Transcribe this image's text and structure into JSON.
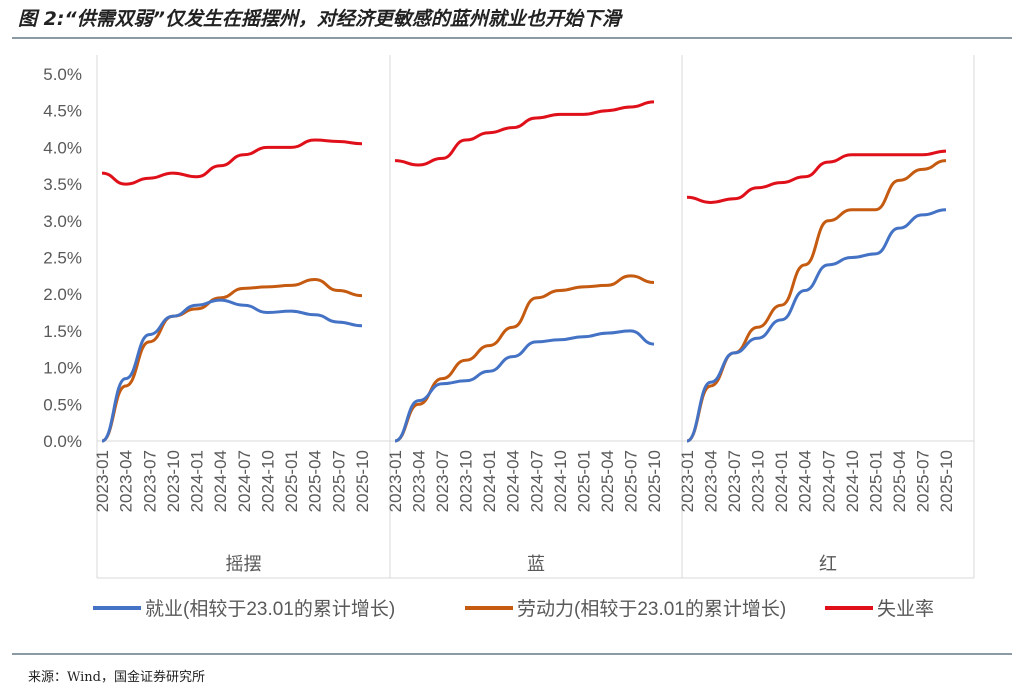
{
  "title": "图 2:“供需双弱”仅发生在摇摆州，对经济更敏感的蓝州就业也开始下滑",
  "source": "来源：Wind，国金证券研究所",
  "chart_data": {
    "type": "line",
    "ylim": [
      0,
      5
    ],
    "yticks": [
      "0.0%",
      "0.5%",
      "1.0%",
      "1.5%",
      "2.0%",
      "2.5%",
      "3.0%",
      "3.5%",
      "4.0%",
      "4.5%",
      "5.0%"
    ],
    "x": [
      "2023-01",
      "2023-04",
      "2023-07",
      "2023-10",
      "2024-01",
      "2024-04",
      "2024-07",
      "2024-10",
      "2025-01",
      "2025-04",
      "2025-07",
      "2025-10"
    ],
    "colors": {
      "employment": "#4472c4",
      "labor": "#c55a11",
      "unemployment": "#e0101a"
    },
    "legend": [
      "就业(相较于23.01的累计增长)",
      "劳动力(相较于23.01的累计增长)",
      "失业率"
    ],
    "legend_placement": "bottom",
    "panels": [
      {
        "name": "摇摆",
        "employment": [
          0,
          0.85,
          1.45,
          1.7,
          1.85,
          1.92,
          1.85,
          1.75,
          1.77,
          1.72,
          1.62,
          1.57
        ],
        "labor": [
          0,
          0.75,
          1.35,
          1.7,
          1.8,
          1.95,
          2.08,
          2.1,
          2.12,
          2.2,
          2.05,
          1.98
        ],
        "unemployment": [
          3.65,
          3.5,
          3.58,
          3.65,
          3.6,
          3.75,
          3.9,
          4.0,
          4.0,
          4.1,
          4.08,
          4.05
        ]
      },
      {
        "name": "蓝",
        "employment": [
          0,
          0.55,
          0.78,
          0.82,
          0.95,
          1.15,
          1.35,
          1.38,
          1.42,
          1.47,
          1.5,
          1.32
        ],
        "labor": [
          0,
          0.5,
          0.85,
          1.1,
          1.3,
          1.55,
          1.95,
          2.05,
          2.1,
          2.12,
          2.25,
          2.16
        ],
        "unemployment": [
          3.82,
          3.76,
          3.85,
          4.1,
          4.2,
          4.27,
          4.4,
          4.45,
          4.45,
          4.5,
          4.55,
          4.62
        ]
      },
      {
        "name": "红",
        "employment": [
          0,
          0.8,
          1.2,
          1.4,
          1.65,
          2.05,
          2.4,
          2.5,
          2.55,
          2.9,
          3.08,
          3.15
        ],
        "labor": [
          0,
          0.75,
          1.2,
          1.55,
          1.85,
          2.4,
          3.0,
          3.15,
          3.15,
          3.55,
          3.7,
          3.82
        ],
        "unemployment": [
          3.32,
          3.25,
          3.3,
          3.45,
          3.52,
          3.6,
          3.8,
          3.9,
          3.9,
          3.9,
          3.9,
          3.95
        ]
      }
    ]
  }
}
